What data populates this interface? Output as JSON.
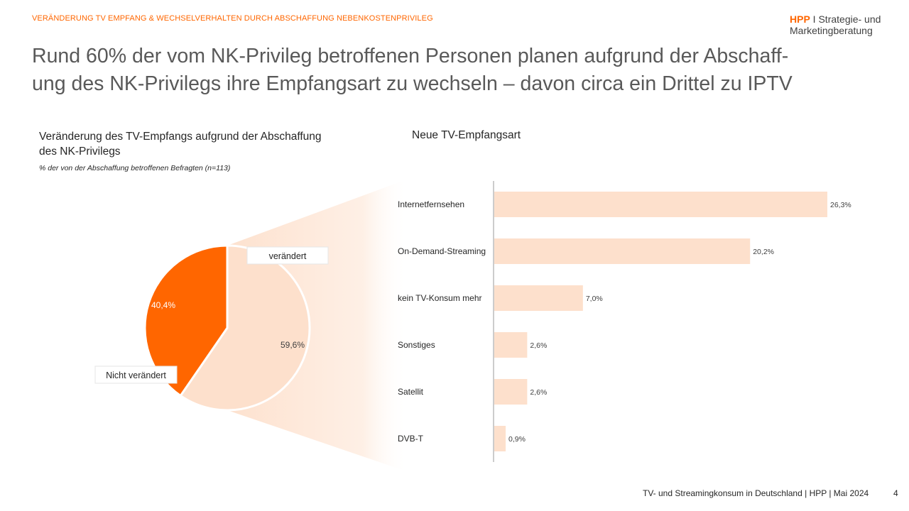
{
  "header": {
    "kicker": "VERÄNDERUNG TV EMPFANG & WECHSELVERHALTEN DURCH ABSCHAFFUNG NEBENKOSTENPRIVILEG",
    "brand_hpp": "HPP",
    "brand_line1": " I Strategie- und",
    "brand_line2": "Marketingberatung"
  },
  "headline": {
    "line1": "Rund 60% der vom NK-Privileg betroffenen Personen planen aufgrund der Abschaff-",
    "line2": "ung des NK-Privilegs ihre Empfangsart zu wechseln – davon circa ein Drittel zu IPTV"
  },
  "left": {
    "title_line1": "Veränderung des TV-Empfangs aufgrund der Abschaffung",
    "title_line2": "des NK-Privilegs",
    "subtitle": "% der von der Abschaffung betroffenen Befragten (n=113)"
  },
  "right": {
    "title": "Neue TV-Empfangsart"
  },
  "footer": {
    "text": "TV- und Streamingkonsum in Deutschland | HPP | Mai 2024",
    "page": "4"
  },
  "colors": {
    "accent": "#ff6600",
    "light": "#fde0cc"
  },
  "chart_data": [
    {
      "type": "pie",
      "title": "Veränderung des TV-Empfangs aufgrund der Abschaffung des NK-Privilegs",
      "slices": [
        {
          "label": "verändert",
          "value": 59.6,
          "value_label": "59,6%",
          "color": "#fde0cc"
        },
        {
          "label": "Nicht verändert",
          "value": 40.4,
          "value_label": "40,4%",
          "color": "#ff6600"
        }
      ]
    },
    {
      "type": "bar",
      "orientation": "horizontal",
      "title": "Neue TV-Empfangsart",
      "categories": [
        "Internetfernsehen",
        "On-Demand-Streaming",
        "kein TV-Konsum mehr",
        "Sonstiges",
        "Satellit",
        "DVB-T"
      ],
      "values": [
        26.3,
        20.2,
        7.0,
        2.6,
        2.6,
        0.9
      ],
      "value_labels": [
        "26,3%",
        "20,2%",
        "7,0%",
        "2,6%",
        "2,6%",
        "0,9%"
      ],
      "xlim": [
        0,
        26.3
      ],
      "color": "#fde0cc"
    }
  ]
}
